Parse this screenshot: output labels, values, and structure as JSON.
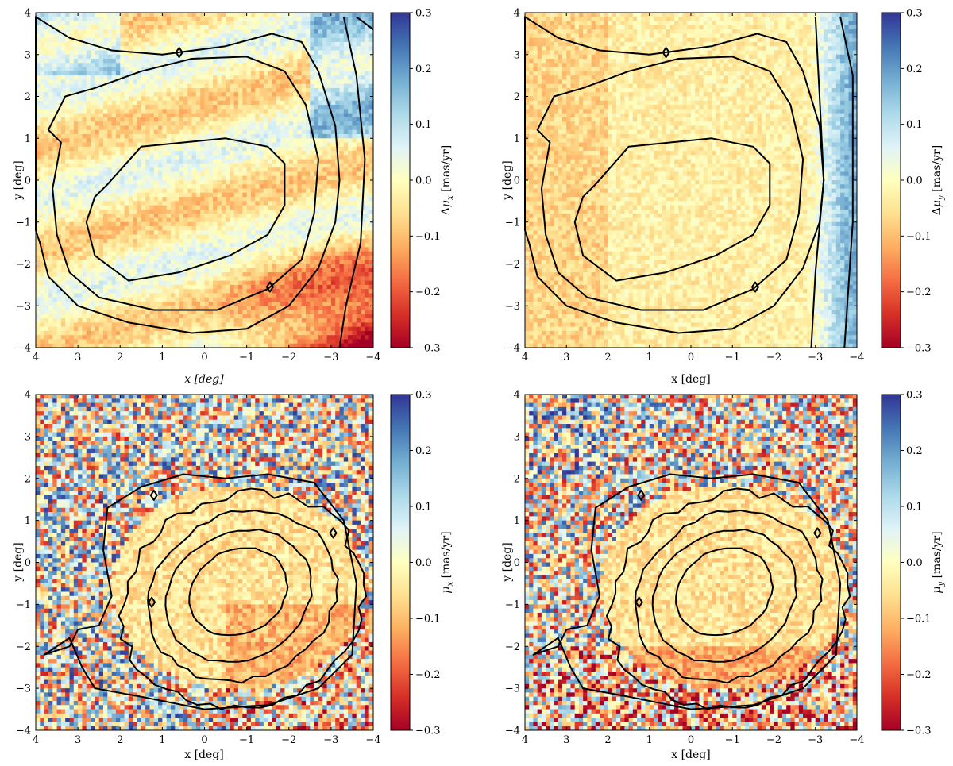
{
  "chart_data": [
    {
      "type": "heatmap",
      "panel": "top-left",
      "xlabel": "x [deg]",
      "ylabel": "y [deg]",
      "xlim": [
        4,
        -4
      ],
      "ylim": [
        -4,
        4
      ],
      "xticks": [
        "4",
        "3",
        "2",
        "1",
        "0",
        "−1",
        "−2",
        "−3",
        "−4"
      ],
      "yticks": [
        "4",
        "3",
        "2",
        "1",
        "0",
        "−1",
        "−2",
        "−3",
        "−4"
      ],
      "colorbar": {
        "label": "Δμ_x [mas/yr]",
        "label_parts": [
          "Δ",
          "μ",
          "x",
          " [mas/yr]"
        ],
        "range": [
          -0.3,
          0.3
        ],
        "ticks": [
          "0.3",
          "0.2",
          "0.1",
          "0.0",
          "−0.1",
          "−0.2",
          "−0.3"
        ]
      },
      "pattern": "residual",
      "field": "x"
    },
    {
      "type": "heatmap",
      "panel": "top-right",
      "xlabel": "x [deg]",
      "ylabel": "y [deg]",
      "xlim": [
        4,
        -4
      ],
      "ylim": [
        -4,
        4
      ],
      "xticks": [
        "4",
        "3",
        "2",
        "1",
        "0",
        "−1",
        "−2",
        "−3",
        "−4"
      ],
      "yticks": [
        "4",
        "3",
        "2",
        "1",
        "0",
        "−1",
        "−2",
        "−3",
        "−4"
      ],
      "colorbar": {
        "label": "Δμ_y [mas/yr]",
        "label_parts": [
          "Δ",
          "μ",
          "y",
          " [mas/yr]"
        ],
        "range": [
          -0.3,
          0.3
        ],
        "ticks": [
          "0.3",
          "0.2",
          "0.1",
          "0.0",
          "−0.1",
          "−0.2",
          "−0.3"
        ]
      },
      "pattern": "residual",
      "field": "y"
    },
    {
      "type": "heatmap",
      "panel": "bottom-left",
      "xlabel": "x [deg]",
      "ylabel": "y [deg]",
      "xlim": [
        4,
        -4
      ],
      "ylim": [
        -4,
        4
      ],
      "xticks": [
        "4",
        "3",
        "2",
        "1",
        "0",
        "−1",
        "−2",
        "−3",
        "−4"
      ],
      "yticks": [
        "4",
        "3",
        "2",
        "1",
        "0",
        "−1",
        "−2",
        "−3",
        "−4"
      ],
      "colorbar": {
        "label": "μ_x [mas/yr]",
        "label_parts": [
          "",
          "μ",
          "x",
          " [mas/yr]"
        ],
        "range": [
          -0.3,
          0.3
        ],
        "ticks": [
          "0.3",
          "0.2",
          "0.1",
          "0.0",
          "−0.1",
          "−0.2",
          "−0.3"
        ]
      },
      "pattern": "field",
      "field": "x"
    },
    {
      "type": "heatmap",
      "panel": "bottom-right",
      "xlabel": "x [deg]",
      "ylabel": "y [deg]",
      "xlim": [
        4,
        -4
      ],
      "ylim": [
        -4,
        4
      ],
      "xticks": [
        "4",
        "3",
        "2",
        "1",
        "0",
        "−1",
        "−2",
        "−3",
        "−4"
      ],
      "yticks": [
        "4",
        "3",
        "2",
        "1",
        "0",
        "−1",
        "−2",
        "−3",
        "−4"
      ],
      "colorbar": {
        "label": "μ_y [mas/yr]",
        "label_parts": [
          "",
          "μ",
          "y",
          " [mas/yr]"
        ],
        "range": [
          -0.3,
          0.3
        ],
        "ticks": [
          "0.3",
          "0.2",
          "0.1",
          "0.0",
          "−0.1",
          "−0.2",
          "−0.3"
        ]
      },
      "pattern": "field",
      "field": "y"
    }
  ],
  "colormap": {
    "name": "RdYlBu",
    "stops": [
      "#a50026",
      "#d73027",
      "#f46d43",
      "#fdae61",
      "#fee090",
      "#ffffbf",
      "#e0f3f8",
      "#abd9e9",
      "#74add1",
      "#4575b4",
      "#313695"
    ]
  }
}
